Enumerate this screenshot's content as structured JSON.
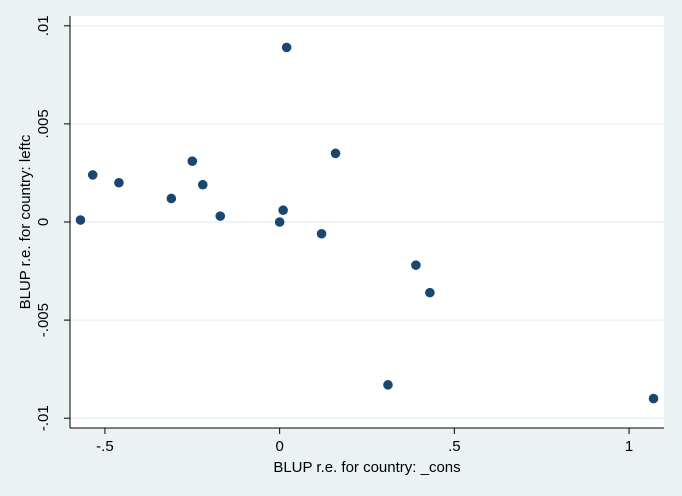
{
  "chart_data": {
    "type": "scatter",
    "title": "",
    "xlabel": "BLUP r.e. for country: _cons",
    "ylabel": "BLUP r.e. for country: leftc",
    "xlim": [
      -0.6,
      1.1
    ],
    "ylim": [
      -0.0105,
      0.0105
    ],
    "x_ticks": [
      {
        "value": -0.5,
        "label": "-.5"
      },
      {
        "value": 0,
        "label": "0"
      },
      {
        "value": 0.5,
        "label": ".5"
      },
      {
        "value": 1,
        "label": "1"
      }
    ],
    "y_ticks": [
      {
        "value": 0.01,
        "label": ".01"
      },
      {
        "value": 0.005,
        "label": ".005"
      },
      {
        "value": 0,
        "label": "0"
      },
      {
        "value": -0.005,
        "label": "-.005"
      },
      {
        "value": -0.01,
        "label": "-.01"
      }
    ],
    "grid": true,
    "legend": "none",
    "colors": {
      "background": "#eaf2f3",
      "plot_background": "#ffffff",
      "marker": "#1a476f",
      "grid": "#eaf2f3",
      "axis": "#000000"
    },
    "points": [
      {
        "x": 0.02,
        "y": 0.0089
      },
      {
        "x": 0.16,
        "y": 0.0035
      },
      {
        "x": -0.25,
        "y": 0.0031
      },
      {
        "x": -0.535,
        "y": 0.0024
      },
      {
        "x": -0.46,
        "y": 0.002
      },
      {
        "x": -0.22,
        "y": 0.0019
      },
      {
        "x": -0.31,
        "y": 0.0012
      },
      {
        "x": -0.17,
        "y": 0.0003
      },
      {
        "x": -0.57,
        "y": 0.0001
      },
      {
        "x": 0.01,
        "y": 0.0006
      },
      {
        "x": 0.0,
        "y": 0.0
      },
      {
        "x": 0.12,
        "y": -0.0006
      },
      {
        "x": 0.39,
        "y": -0.0022
      },
      {
        "x": 0.43,
        "y": -0.0036
      },
      {
        "x": 0.31,
        "y": -0.0083
      },
      {
        "x": 1.07,
        "y": -0.009
      }
    ]
  }
}
